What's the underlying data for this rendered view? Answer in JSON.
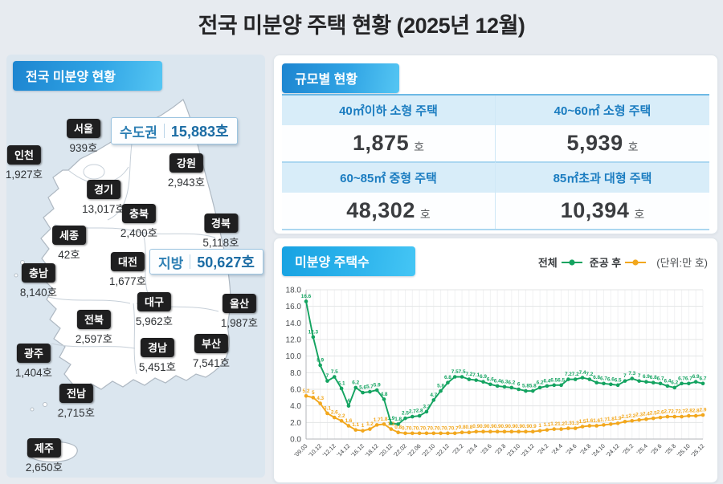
{
  "title": "전국 미분양 주택 현황 (2025년 12월)",
  "map_panel": {
    "header": "전국 미분양 현황",
    "badges": [
      {
        "label": "수도권",
        "value": "15,883호"
      },
      {
        "label": "지방",
        "value": "50,627호"
      }
    ],
    "regions": [
      {
        "name": "서울",
        "value": "939호"
      },
      {
        "name": "인천",
        "value": "1,927호"
      },
      {
        "name": "강원",
        "value": "2,943호"
      },
      {
        "name": "경기",
        "value": "13,017호"
      },
      {
        "name": "충북",
        "value": "2,400호"
      },
      {
        "name": "경북",
        "value": "5,118호"
      },
      {
        "name": "세종",
        "value": "42호"
      },
      {
        "name": "대전",
        "value": "1,677호"
      },
      {
        "name": "충남",
        "value": "8,140호"
      },
      {
        "name": "대구",
        "value": "5,962호"
      },
      {
        "name": "울산",
        "value": "1,987호"
      },
      {
        "name": "전북",
        "value": "2,597호"
      },
      {
        "name": "경남",
        "value": "5,451호"
      },
      {
        "name": "부산",
        "value": "7,541호"
      },
      {
        "name": "광주",
        "value": "1,404호"
      },
      {
        "name": "전남",
        "value": "2,715호"
      },
      {
        "name": "제주",
        "value": "2,650호"
      }
    ]
  },
  "size_panel": {
    "header": "규모별 현황",
    "unit": "호",
    "cells": [
      {
        "label": "40㎡이하 소형 주택",
        "value": "1,875"
      },
      {
        "label": "40~60㎡ 소형 주택",
        "value": "5,939"
      },
      {
        "label": "60~85㎡ 중형 주택",
        "value": "48,302"
      },
      {
        "label": "85㎡초과 대형 주택",
        "value": "10,394"
      }
    ]
  },
  "chart_panel": {
    "header": "미분양 주택수",
    "unit_note": "(단위:만 호)"
  },
  "chart_data": {
    "type": "line",
    "title": "미분양 주택수",
    "xlabel": "",
    "ylabel": "",
    "ylim": [
      0,
      18
    ],
    "ytick_step": 2,
    "grid": true,
    "legend_position": "top-right",
    "unit_note": "(단위:만 호)",
    "x_tick_labels": [
      "'09.03",
      "'10.12",
      "'12.12",
      "'14.12",
      "'16.12",
      "'18.12",
      "'20.12",
      "'22.02",
      "'22.06",
      "'22.10",
      "'22.12",
      "'23.2",
      "'23.4",
      "'23.6",
      "'23.8",
      "'23.10",
      "'23.12",
      "'24.2",
      "'24.4",
      "'24.6",
      "'24.8",
      "'24.10",
      "'24.12",
      "'25.2",
      "'25.4",
      "'25.6",
      "'25.8",
      "'25.10",
      "'25.12"
    ],
    "points_per_label": 2,
    "series": [
      {
        "name": "전체",
        "color": "#13a360",
        "values": [
          16.6,
          12.3,
          8.9,
          7.0,
          7.5,
          6.1,
          4.0,
          6.2,
          5.6,
          5.7,
          5.9,
          4.8,
          1.9,
          1.8,
          2.5,
          2.7,
          2.8,
          3.3,
          4.7,
          5.8,
          6.8,
          7.5,
          7.5,
          7.2,
          7.1,
          6.9,
          6.6,
          6.4,
          6.3,
          6.2,
          6.0,
          5.8,
          5.8,
          6.2,
          6.4,
          6.5,
          6.5,
          7.2,
          7.2,
          7.4,
          7.2,
          6.8,
          6.7,
          6.6,
          6.5,
          7.0,
          7.3,
          7.0,
          6.9,
          6.8,
          6.7,
          6.4,
          6.2,
          6.7,
          6.7,
          6.9,
          6.7
        ]
      },
      {
        "name": "준공 후",
        "color": "#f2a71d",
        "values": [
          5.2,
          5.0,
          4.3,
          3.1,
          2.6,
          2.2,
          1.6,
          1.1,
          1.0,
          1.2,
          1.7,
          1.8,
          1.2,
          0.8,
          0.7,
          0.7,
          0.7,
          0.7,
          0.7,
          0.7,
          0.7,
          0.7,
          0.8,
          0.8,
          0.9,
          0.9,
          0.9,
          0.9,
          0.9,
          0.9,
          0.9,
          0.9,
          0.9,
          1.0,
          1.1,
          1.2,
          1.2,
          1.3,
          1.3,
          1.5,
          1.6,
          1.6,
          1.7,
          1.8,
          1.9,
          2.1,
          2.2,
          2.3,
          2.4,
          2.5,
          2.6,
          2.7,
          2.7,
          2.7,
          2.8,
          2.8,
          2.9
        ]
      }
    ]
  }
}
